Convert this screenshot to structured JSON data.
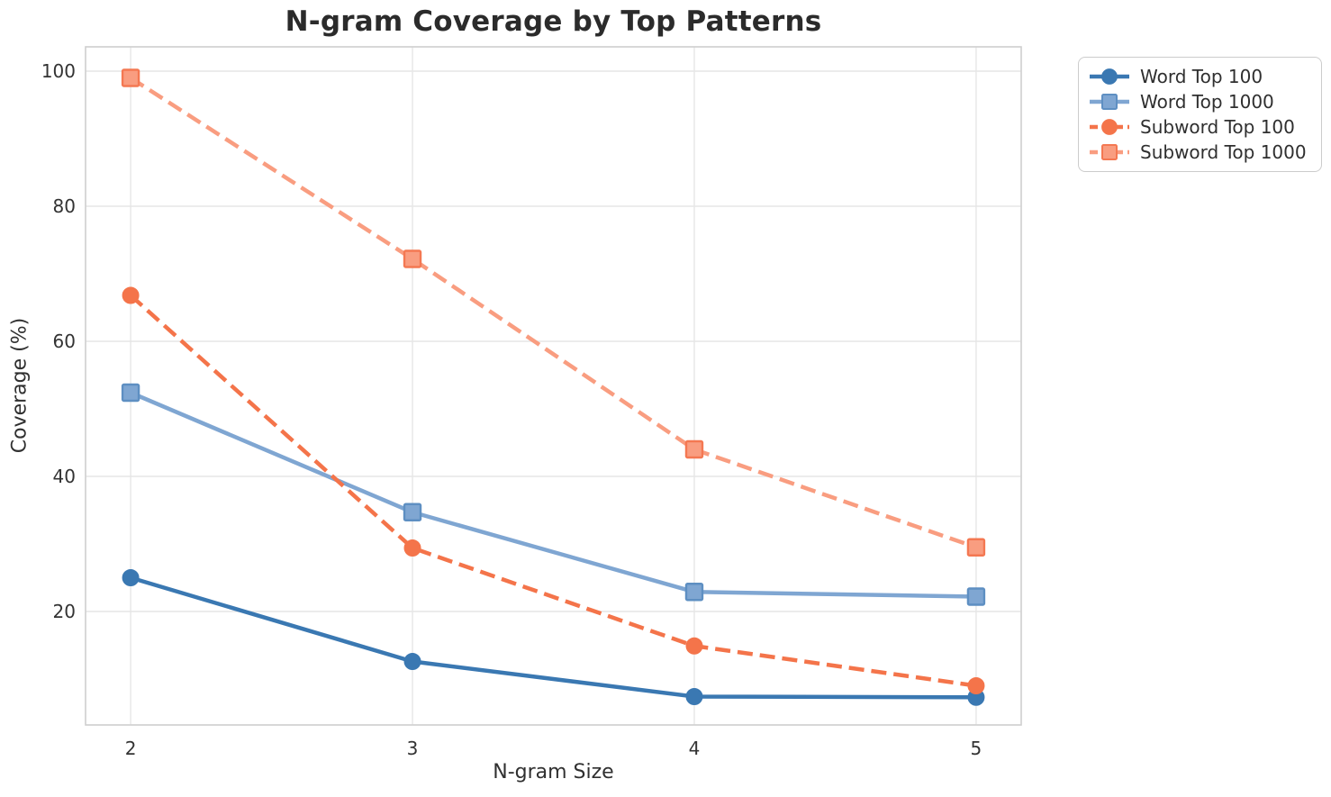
{
  "chart_data": {
    "type": "line",
    "title": "N-gram Coverage by Top Patterns",
    "xlabel": "N-gram Size",
    "ylabel": "Coverage (%)",
    "x": [
      2,
      3,
      4,
      5
    ],
    "xticks": [
      "2",
      "3",
      "4",
      "5"
    ],
    "yticks": [
      20,
      40,
      60,
      80,
      100
    ],
    "xlim": [
      1.84,
      5.16
    ],
    "ylim": [
      3.2,
      103.6
    ],
    "grid": true,
    "legend_position": "upper right, outside axes",
    "series": [
      {
        "name": "Word Top 100",
        "values": [
          25.0,
          12.6,
          7.4,
          7.3
        ],
        "color": "#3A78B2",
        "edge_color": "#3A78B2",
        "marker": "circle",
        "line_style": "solid"
      },
      {
        "name": "Word Top 1000",
        "values": [
          52.4,
          34.7,
          22.9,
          22.2
        ],
        "color": "#7FA6D2",
        "edge_color": "#5E8FC2",
        "marker": "square",
        "line_style": "solid"
      },
      {
        "name": "Subword Top 100",
        "values": [
          66.8,
          29.4,
          14.9,
          9.0
        ],
        "color": "#F4744A",
        "edge_color": "#F4744A",
        "marker": "circle",
        "line_style": "dashed"
      },
      {
        "name": "Subword Top 1000",
        "values": [
          99.0,
          72.2,
          44.0,
          29.5
        ],
        "color": "#F99D80",
        "edge_color": "#F47852",
        "marker": "square",
        "line_style": "dashed"
      }
    ]
  },
  "colors": {
    "background": "#FFFFFF",
    "grid": "#E6E6E6",
    "spine": "#CFCFCF",
    "title_text": "#2B2B2B",
    "axis_label_text": "#303030",
    "tick_label_text": "#333333",
    "legend_border": "#CCCCCC",
    "legend_text": "#2F2F2F"
  }
}
